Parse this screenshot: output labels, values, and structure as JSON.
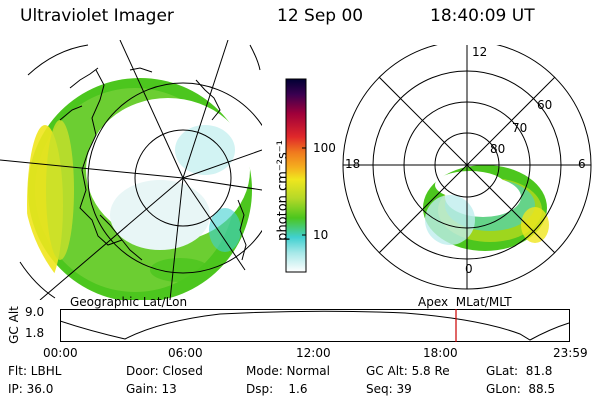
{
  "header": {
    "instrument": "Ultraviolet Imager",
    "date": "12 Sep 00",
    "time": "18:40:09 UT"
  },
  "colorbar": {
    "unit_label": "photon cm⁻²s⁻¹",
    "ticks": [
      "100",
      "10"
    ]
  },
  "polar_plot": {
    "mlat_labels": [
      "60",
      "70",
      "80"
    ],
    "mlt_labels": [
      "12",
      "18",
      "6",
      "0"
    ]
  },
  "map_labels": {
    "left": "Geographic Lat/Lon",
    "right": "Apex  MLat/MLT"
  },
  "altitude_plot": {
    "axis_label": "GC Alt",
    "y_ticks": [
      "9.0",
      "1.8"
    ],
    "x_ticks": [
      "00:00",
      "06:00",
      "12:00",
      "18:00",
      "23:59"
    ]
  },
  "status": {
    "flt": "Flt: LBHL",
    "ip": "IP: 36.0",
    "door": "Door: Closed",
    "gain": "Gain: 13",
    "mode": "Mode: Normal",
    "dsp": "Dsp:    1.6",
    "gc_alt": "GC Alt: 5.8 Re",
    "seq": "Seq: 39",
    "glat": "GLat:  81.8",
    "glon": "GLon:  88.5"
  },
  "colors": {
    "aurora_green": "#4cc61e",
    "aurora_yellow": "#f0e61e",
    "aurora_cyan": "#40d0d0",
    "current_time_marker": "#cc0000"
  }
}
